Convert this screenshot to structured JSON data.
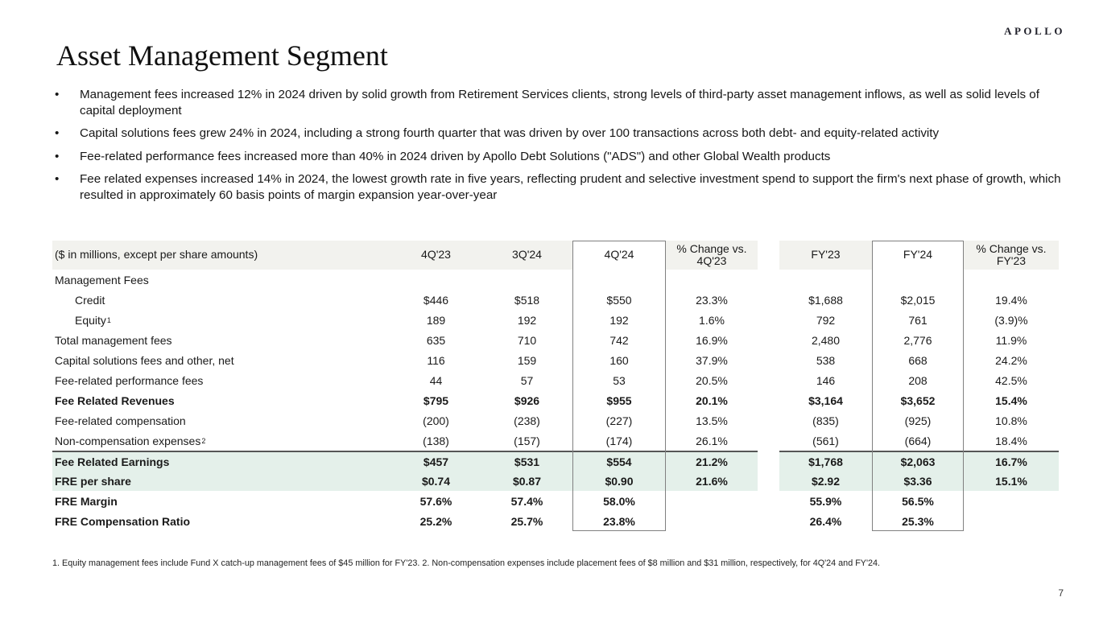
{
  "brand": {
    "logo": "APOLLO"
  },
  "page": {
    "title": "Asset Management Segment",
    "page_number": "7",
    "bullet_char": "•",
    "footnote": "1. Equity management fees include Fund X catch-up management fees of $45 million for FY'23. 2. Non-compensation expenses include placement fees of $8 million and $31 million, respectively, for 4Q'24 and FY'24."
  },
  "bullets": [
    "Management fees increased 12% in 2024 driven by solid growth from Retirement Services clients, strong levels of third-party asset management inflows, as well as solid levels of capital deployment",
    "Capital solutions fees grew 24% in 2024, including a strong fourth quarter that was driven by over 100 transactions across both debt- and equity-related activity",
    "Fee-related performance fees increased more than 40% in 2024 driven by Apollo Debt Solutions (\"ADS\") and other Global Wealth products",
    "Fee related expenses increased 14% in 2024, the lowest growth rate in five years, reflecting prudent and selective investment spend to support the firm's next phase of growth, which resulted in approximately 60 basis points of margin expansion year-over-year"
  ],
  "table": {
    "header": {
      "label": "($ in millions, except per share amounts)",
      "cols": [
        "4Q'23",
        "3Q'24",
        "4Q'24",
        "% Change vs. 4Q'23",
        "FY'23",
        "FY'24",
        "% Change vs. FY'23"
      ]
    },
    "colors": {
      "header_bg": "#f2f2ee",
      "highlight_bg": "#e4f0ea",
      "box_border": "#808080",
      "rule": "#565656"
    },
    "rows": [
      {
        "label": "Management Fees",
        "values": [
          "",
          "",
          "",
          "",
          "",
          "",
          ""
        ]
      },
      {
        "label": "Credit",
        "indent": 1,
        "values": [
          "$446",
          "$518",
          "$550",
          "23.3%",
          "$1,688",
          "$2,015",
          "19.4%"
        ]
      },
      {
        "label": "Equity",
        "sup": "1",
        "indent": 1,
        "values": [
          "189",
          "192",
          "192",
          "1.6%",
          "792",
          "761",
          "(3.9)%"
        ]
      },
      {
        "label": "Total management fees",
        "values": [
          "635",
          "710",
          "742",
          "16.9%",
          "2,480",
          "2,776",
          "11.9%"
        ]
      },
      {
        "label": "Capital solutions fees and other, net",
        "values": [
          "116",
          "159",
          "160",
          "37.9%",
          "538",
          "668",
          "24.2%"
        ]
      },
      {
        "label": "Fee-related performance fees",
        "values": [
          "44",
          "57",
          "53",
          "20.5%",
          "146",
          "208",
          "42.5%"
        ]
      },
      {
        "label": "Fee Related Revenues",
        "bold": true,
        "values": [
          "$795",
          "$926",
          "$955",
          "20.1%",
          "$3,164",
          "$3,652",
          "15.4%"
        ]
      },
      {
        "label": "Fee-related compensation",
        "values": [
          "(200)",
          "(238)",
          "(227)",
          "13.5%",
          "(835)",
          "(925)",
          "10.8%"
        ]
      },
      {
        "label": "Non-compensation expenses",
        "sup": "2",
        "values": [
          "(138)",
          "(157)",
          "(174)",
          "26.1%",
          "(561)",
          "(664)",
          "18.4%"
        ]
      },
      {
        "label": "Fee Related Earnings",
        "bold": true,
        "highlight": true,
        "rule_above": true,
        "values": [
          "$457",
          "$531",
          "$554",
          "21.2%",
          "$1,768",
          "$2,063",
          "16.7%"
        ]
      },
      {
        "label": "FRE per share",
        "bold": true,
        "highlight": true,
        "values": [
          "$0.74",
          "$0.87",
          "$0.90",
          "21.6%",
          "$2.92",
          "$3.36",
          "15.1%"
        ]
      },
      {
        "label": "FRE Margin",
        "bold": true,
        "values": [
          "57.6%",
          "57.4%",
          "58.0%",
          "",
          "55.9%",
          "56.5%",
          ""
        ]
      },
      {
        "label": "FRE Compensation Ratio",
        "bold": true,
        "values": [
          "25.2%",
          "25.7%",
          "23.8%",
          "",
          "26.4%",
          "25.3%",
          ""
        ]
      }
    ]
  }
}
